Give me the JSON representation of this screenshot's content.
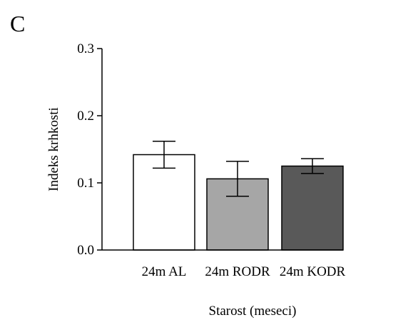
{
  "panel_label": "C",
  "colors": {
    "axis": "#000000",
    "bar_fills": [
      "#ffffff",
      "#a6a6a6",
      "#595959"
    ],
    "bar_stroke": "#000000"
  },
  "chart_data": {
    "type": "bar",
    "categories": [
      "24m AL",
      "24m RODR",
      "24m KODR"
    ],
    "values": [
      0.142,
      0.106,
      0.125
    ],
    "error_bars": [
      0.02,
      0.026,
      0.011
    ],
    "xlabel": "Starost (meseci)",
    "ylabel": "Indeks krhkosti",
    "ylim": [
      0.0,
      0.3
    ],
    "yticks": [
      "0.0",
      "0.1",
      "0.2",
      "0.3"
    ],
    "grid": false,
    "legend": "none"
  }
}
